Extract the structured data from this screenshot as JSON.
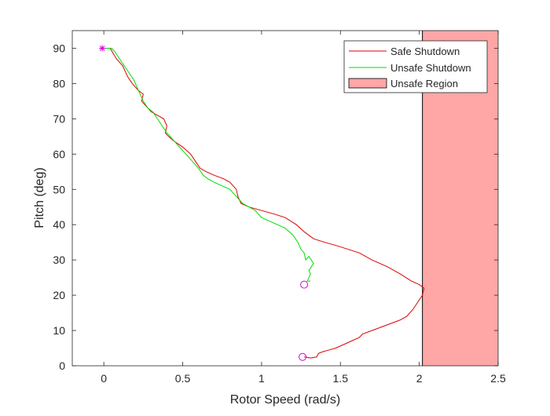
{
  "chart_data": {
    "type": "line",
    "xlabel": "Rotor Speed (rad/s)",
    "ylabel": "Pitch (deg)",
    "xlim": [
      -0.2,
      2.5
    ],
    "ylim": [
      0,
      95
    ],
    "xticks": [
      0,
      0.5,
      1,
      1.5,
      2,
      2.5
    ],
    "xtick_labels": [
      "0",
      "0.5",
      "1",
      "1.5",
      "2",
      "2.5"
    ],
    "yticks": [
      0,
      10,
      20,
      30,
      40,
      50,
      60,
      70,
      80,
      90
    ],
    "ytick_labels": [
      "0",
      "10",
      "20",
      "30",
      "40",
      "50",
      "60",
      "70",
      "80",
      "90"
    ],
    "grid": false,
    "legend_position": "top-right",
    "series": [
      {
        "name": "Safe Shutdown",
        "color": "#dd0000",
        "x": [
          -0.01,
          0.04,
          0.08,
          0.12,
          0.15,
          0.18,
          0.22,
          0.25,
          0.24,
          0.27,
          0.3,
          0.34,
          0.38,
          0.4,
          0.39,
          0.41,
          0.45,
          0.5,
          0.55,
          0.58,
          0.61,
          0.65,
          0.7,
          0.76,
          0.8,
          0.84,
          0.85,
          0.87,
          0.92,
          1.0,
          1.08,
          1.15,
          1.22,
          1.27,
          1.33,
          1.4,
          1.48,
          1.55,
          1.62,
          1.7,
          1.8,
          1.88,
          1.95,
          2.0,
          2.03,
          2.02,
          1.99,
          1.96,
          1.92,
          1.88,
          1.82,
          1.76,
          1.7,
          1.64,
          1.62,
          1.57,
          1.52,
          1.47,
          1.43,
          1.39,
          1.36,
          1.35,
          1.31,
          1.27
        ],
        "y": [
          90.0,
          90.0,
          87.0,
          85.0,
          82.0,
          80.0,
          78.0,
          77.0,
          75.0,
          73.5,
          72.0,
          71.0,
          70.0,
          68.0,
          66.0,
          65.0,
          63.5,
          62.0,
          60.0,
          58.0,
          56.0,
          55.0,
          54.0,
          53.0,
          52.0,
          50.0,
          48.0,
          46.0,
          45.0,
          44.0,
          43.0,
          42.0,
          40.0,
          38.0,
          36.0,
          35.0,
          34.0,
          33.0,
          32.0,
          30.0,
          28.0,
          26.0,
          24.0,
          23.0,
          22.0,
          20.0,
          18.0,
          16.0,
          14.0,
          13.0,
          12.0,
          11.0,
          10.0,
          9.0,
          8.0,
          7.0,
          6.0,
          5.0,
          4.5,
          4.0,
          3.5,
          2.5,
          2.2,
          2.5
        ]
      },
      {
        "name": "Unsafe Shutdown",
        "color": "#00dd00",
        "x": [
          -0.01,
          0.05,
          0.07,
          0.1,
          0.13,
          0.16,
          0.19,
          0.22,
          0.25,
          0.28,
          0.31,
          0.34,
          0.37,
          0.4,
          0.44,
          0.48,
          0.52,
          0.56,
          0.6,
          0.63,
          0.66,
          0.7,
          0.75,
          0.8,
          0.84,
          0.88,
          0.92,
          0.96,
          1.0,
          1.05,
          1.1,
          1.15,
          1.2,
          1.23,
          1.25,
          1.27,
          1.28,
          1.3,
          1.33,
          1.3,
          1.31,
          1.29,
          1.31
        ],
        "y": [
          90.0,
          90.0,
          89.0,
          87.0,
          85.0,
          83.0,
          81.0,
          78.0,
          75.0,
          73.0,
          72.0,
          70.0,
          68.0,
          66.0,
          64.0,
          62.0,
          60.0,
          58.0,
          56.0,
          54.0,
          53.0,
          52.0,
          51.0,
          50.0,
          48.0,
          46.0,
          45.0,
          44.0,
          42.0,
          41.0,
          40.0,
          39.0,
          37.0,
          35.0,
          33.0,
          32.0,
          30.0,
          31.0,
          29.0,
          27.0,
          26.0,
          24.0,
          24.0
        ]
      }
    ],
    "unsafe_region": {
      "name": "Unsafe Region",
      "x_range": [
        2.02,
        2.5
      ],
      "y_range": [
        0,
        95
      ],
      "fill": "#ffa6a6"
    },
    "markers": [
      {
        "type": "star",
        "x": -0.01,
        "y": 90.0,
        "color": "#d400d4"
      },
      {
        "type": "circle",
        "x": 1.27,
        "y": 23.0,
        "color": "#d400d4"
      },
      {
        "type": "circle",
        "x": 1.26,
        "y": 2.5,
        "color": "#d400d4"
      }
    ]
  }
}
